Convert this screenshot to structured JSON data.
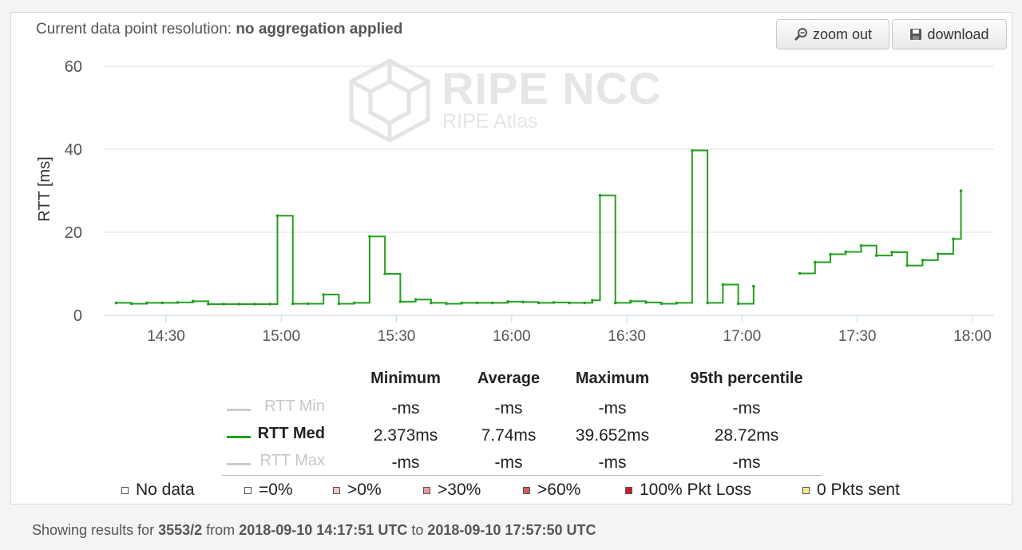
{
  "header": {
    "resolution_prefix": "Current data point resolution:",
    "resolution_value": "no aggregation applied",
    "zoom_out_label": "zoom out",
    "download_label": "download"
  },
  "watermark": {
    "title": "RIPE NCC",
    "subtitle": "RIPE Atlas"
  },
  "chart_data": {
    "type": "line",
    "ylabel": "RTT [ms]",
    "xlabel": "",
    "ylim": [
      0,
      60
    ],
    "yticks": [
      0,
      20,
      40,
      60
    ],
    "xticks": [
      "14:30",
      "15:00",
      "15:30",
      "16:00",
      "16:30",
      "17:00",
      "17:30",
      "18:00"
    ],
    "x_range": [
      "14:17:51",
      "17:57:50"
    ],
    "grid": true,
    "step": true,
    "series": [
      {
        "name": "RTT Med",
        "color": "#22a01f",
        "points": [
          [
            "14:17",
            3.0
          ],
          [
            "14:21",
            2.8
          ],
          [
            "14:25",
            3.0
          ],
          [
            "14:29",
            3.0
          ],
          [
            "14:33",
            3.1
          ],
          [
            "14:37",
            3.4
          ],
          [
            "14:41",
            2.7
          ],
          [
            "14:45",
            2.7
          ],
          [
            "14:49",
            2.7
          ],
          [
            "14:53",
            2.7
          ],
          [
            "14:57",
            2.7
          ],
          [
            "14:59",
            24.0
          ],
          [
            "15:03",
            2.8
          ],
          [
            "15:07",
            2.8
          ],
          [
            "15:11",
            5.0
          ],
          [
            "15:15",
            2.8
          ],
          [
            "15:19",
            3.0
          ],
          [
            "15:23",
            19.0
          ],
          [
            "15:27",
            10.0
          ],
          [
            "15:31",
            3.3
          ],
          [
            "15:35",
            3.8
          ],
          [
            "15:39",
            3.0
          ],
          [
            "15:43",
            2.8
          ],
          [
            "15:47",
            3.0
          ],
          [
            "15:51",
            3.0
          ],
          [
            "15:55",
            3.0
          ],
          [
            "15:59",
            3.3
          ],
          [
            "16:03",
            3.2
          ],
          [
            "16:07",
            3.0
          ],
          [
            "16:11",
            3.1
          ],
          [
            "16:15",
            3.0
          ],
          [
            "16:19",
            3.0
          ],
          [
            "16:21",
            3.6
          ],
          [
            "16:23",
            28.9
          ],
          [
            "16:27",
            3.0
          ],
          [
            "16:31",
            3.4
          ],
          [
            "16:35",
            3.1
          ],
          [
            "16:39",
            2.8
          ],
          [
            "16:43",
            3.0
          ],
          [
            "16:47",
            39.7
          ],
          [
            "16:51",
            3.0
          ],
          [
            "16:55",
            7.4
          ],
          [
            "16:59",
            2.8
          ],
          [
            "17:03",
            7.0
          ],
          null,
          [
            "17:15",
            10.1
          ],
          [
            "17:19",
            12.8
          ],
          [
            "17:23",
            14.7
          ],
          [
            "17:27",
            15.3
          ],
          [
            "17:31",
            16.8
          ],
          [
            "17:35",
            14.4
          ],
          [
            "17:39",
            15.2
          ],
          [
            "17:43",
            12.0
          ],
          [
            "17:47",
            13.3
          ],
          [
            "17:51",
            14.8
          ],
          [
            "17:55",
            18.4
          ],
          [
            "17:57",
            30.0
          ]
        ]
      }
    ]
  },
  "stats": {
    "columns": [
      "Minimum",
      "Average",
      "Maximum",
      "95th percentile"
    ],
    "rows": [
      {
        "label": "RTT Min",
        "color": "#cccccc",
        "active": false,
        "values": [
          "-ms",
          "-ms",
          "-ms",
          "-ms"
        ]
      },
      {
        "label": "RTT Med",
        "color": "#22a01f",
        "active": true,
        "values": [
          "2.373ms",
          "7.74ms",
          "39.652ms",
          "28.72ms"
        ]
      },
      {
        "label": "RTT Max",
        "color": "#cccccc",
        "active": false,
        "values": [
          "-ms",
          "-ms",
          "-ms",
          "-ms"
        ]
      }
    ]
  },
  "legend": [
    {
      "label": "No data",
      "color": "#ffffff"
    },
    {
      "label": "=0%",
      "color": "#ffffff"
    },
    {
      "label": ">0%",
      "color": "#f2c4c4"
    },
    {
      "label": ">30%",
      "color": "#e39a9a"
    },
    {
      "label": ">60%",
      "color": "#d05b62"
    },
    {
      "label": "100% Pkt Loss",
      "color": "#c9202a"
    },
    {
      "label": "0 Pkts sent",
      "color": "#f1ec8a"
    }
  ],
  "footer": {
    "prefix": "Showing results for",
    "measurement": "3553/2",
    "from_word": "from",
    "start": "2018-09-10 14:17:51 UTC",
    "to_word": "to",
    "end": "2018-09-10 17:57:50 UTC"
  }
}
